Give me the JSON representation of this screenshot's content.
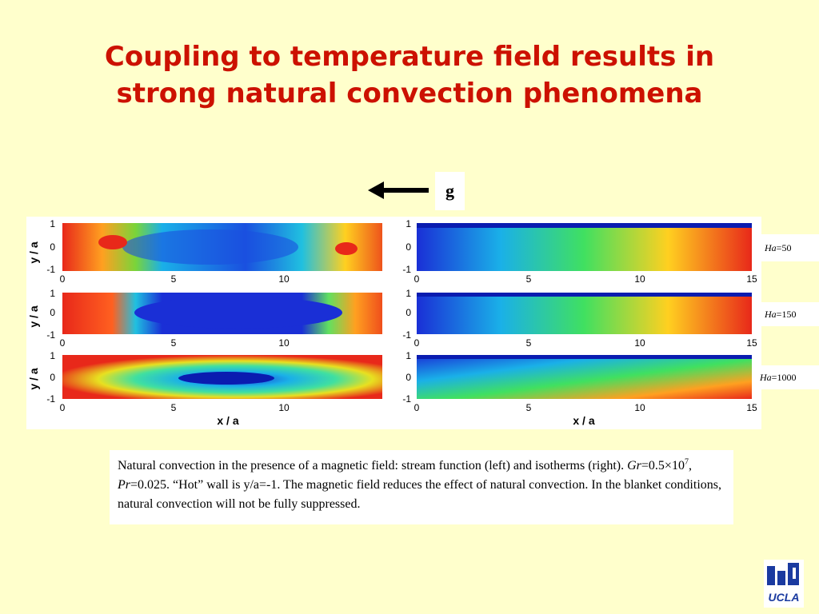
{
  "title": {
    "line1": "Coupling to temperature field results in",
    "line2": "strong natural convection phenomena"
  },
  "gravity": {
    "label": "g",
    "icon": "left-arrow-icon"
  },
  "axes": {
    "x_label": "x / a",
    "y_label": "y / a",
    "x_ticks": [
      "0",
      "5",
      "10",
      "15"
    ],
    "y_ticks": [
      "1",
      "0",
      "-1"
    ]
  },
  "rows": [
    {
      "ha_label": "Ha",
      "ha_value": "=50"
    },
    {
      "ha_label": "Ha",
      "ha_value": "=150"
    },
    {
      "ha_label": "Ha",
      "ha_value": "=1000"
    }
  ],
  "caption": {
    "text1": "Natural convection in the presence of a magnetic field: stream function (left) and isotherms (right). ",
    "gr_label": "Gr",
    "gr_value": "=0.5×10",
    "gr_exp": "7",
    "sep": ", ",
    "pr_label": "Pr",
    "pr_value": "=0.025. “Hot” wall is y/a=-1. The magnetic field reduces the effect of natural convection. In the blanket conditions, natural convection will not be fully suppressed."
  },
  "logo": {
    "text": "UCLA",
    "icon": "ucla-logo-icon"
  },
  "colors": {
    "title": "#cc1100",
    "background": "#ffffcc",
    "hot": "#e8281a",
    "cold": "#1a2fd6"
  }
}
